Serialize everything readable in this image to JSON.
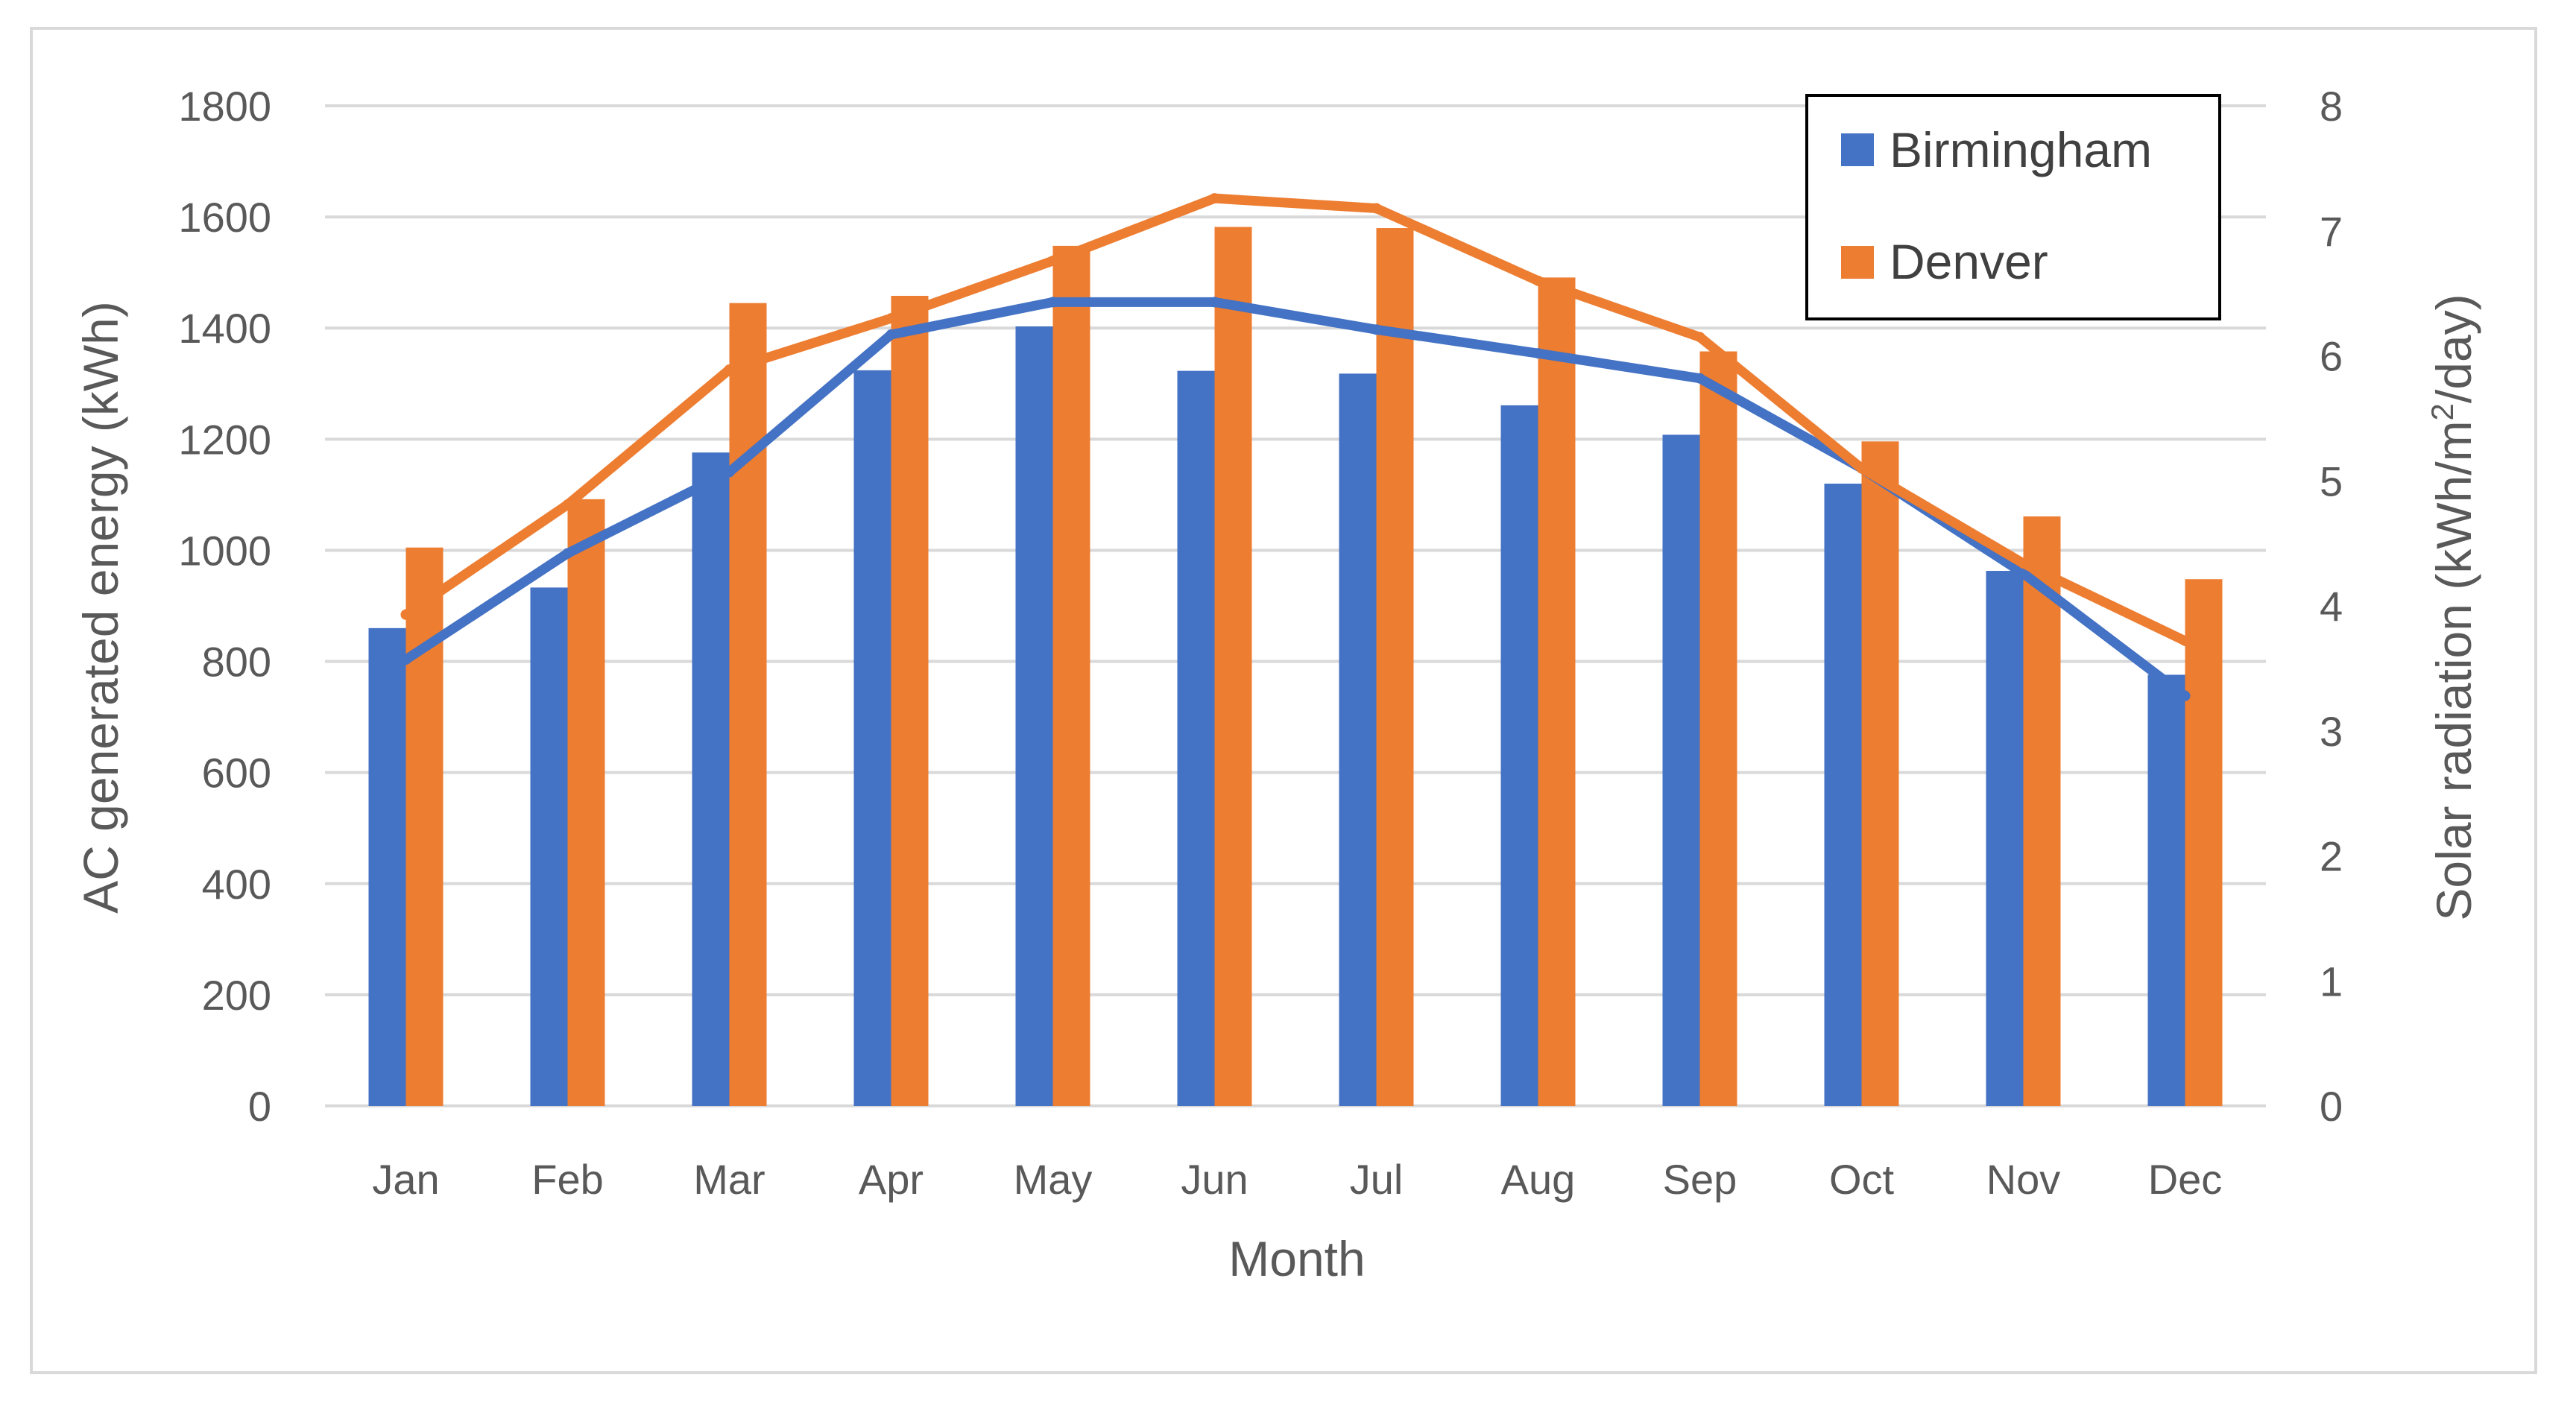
{
  "chart_data": {
    "type": "bar+line",
    "categories": [
      "Jan",
      "Feb",
      "Mar",
      "Apr",
      "May",
      "Jun",
      "Jul",
      "Aug",
      "Sep",
      "Oct",
      "Nov",
      "Dec"
    ],
    "bar_series": [
      {
        "name": "Birmingham",
        "color": "#4472c4",
        "values": [
          860,
          933,
          1176,
          1324,
          1403,
          1323,
          1318,
          1261,
          1208,
          1120,
          963,
          776
        ]
      },
      {
        "name": "Denver",
        "color": "#ed7d31",
        "values": [
          1005,
          1092,
          1445,
          1458,
          1548,
          1582,
          1580,
          1491,
          1358,
          1196,
          1061,
          948
        ]
      }
    ],
    "line_series": [
      {
        "name": "Birmingham",
        "color": "#4472c4",
        "axis": "right",
        "values": [
          3.57,
          4.42,
          5.07,
          6.17,
          6.43,
          6.43,
          6.21,
          6.02,
          5.82,
          5.1,
          4.26,
          3.28
        ]
      },
      {
        "name": "Denver",
        "color": "#ed7d31",
        "axis": "right",
        "values": [
          3.93,
          4.81,
          5.89,
          6.3,
          6.76,
          7.26,
          7.18,
          6.6,
          6.15,
          5.1,
          4.34,
          3.72
        ]
      }
    ],
    "xlabel": "Month",
    "ylabel": "AC generated energy (kWh)",
    "ylabel_right_prefix": "Solar radiation (kWh/m",
    "ylabel_right_sup": "2",
    "ylabel_right_suffix": "/day)",
    "ylim": [
      0,
      1800
    ],
    "yticks": [
      "0",
      "200",
      "400",
      "600",
      "800",
      "1000",
      "1200",
      "1400",
      "1600",
      "1800"
    ],
    "ylim_right": [
      0,
      8
    ],
    "yticks_right": [
      "0",
      "1",
      "2",
      "3",
      "4",
      "5",
      "6",
      "7",
      "8"
    ],
    "grid": true,
    "legend": {
      "position": "top-right",
      "entries": [
        "Birmingham",
        "Denver"
      ]
    }
  }
}
